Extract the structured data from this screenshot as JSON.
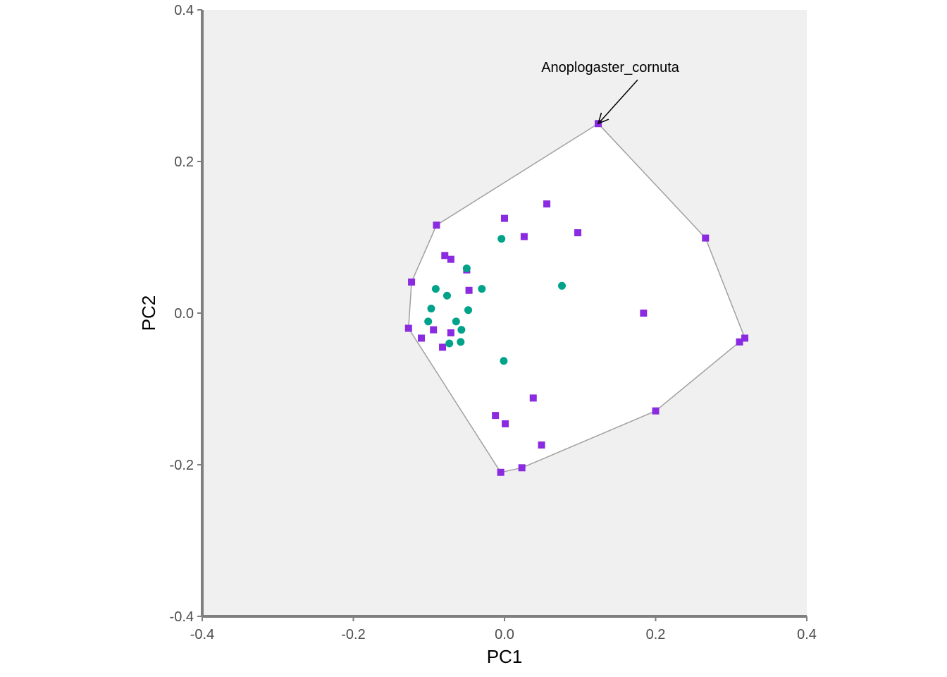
{
  "chart_data": {
    "type": "scatter",
    "title": "",
    "xlabel": "PC1",
    "ylabel": "PC2",
    "xlim": [
      -0.4,
      0.4
    ],
    "ylim": [
      -0.4,
      0.4
    ],
    "x_ticks": [
      -0.4,
      -0.2,
      0.0,
      0.2,
      0.4
    ],
    "x_tick_labels": [
      "-0.4",
      "-0.2",
      "0.0",
      "0.2",
      "0.4"
    ],
    "y_ticks": [
      -0.4,
      -0.2,
      0.0,
      0.2,
      0.4
    ],
    "y_tick_labels": [
      "-0.4",
      "-0.2",
      "0.0",
      "0.2",
      "0.4"
    ],
    "grid": false,
    "legend": "none",
    "colors": {
      "panel_background": "#f0f0f0",
      "hull_fill": "#ffffff",
      "hull_stroke": "#a0a0a0",
      "axis_line": "#7f7f7f"
    },
    "series": [
      {
        "marker": "square",
        "color": "#8a2be2",
        "points": [
          [
            0.124,
            0.25
          ],
          [
            -0.09,
            0.116
          ],
          [
            -0.123,
            0.041
          ],
          [
            -0.127,
            -0.02
          ],
          [
            -0.11,
            -0.033
          ],
          [
            -0.094,
            -0.022
          ],
          [
            -0.082,
            -0.045
          ],
          [
            -0.079,
            0.076
          ],
          [
            -0.071,
            0.071
          ],
          [
            -0.071,
            -0.026
          ],
          [
            -0.05,
            0.057
          ],
          [
            -0.047,
            0.03
          ],
          [
            0.0,
            0.125
          ],
          [
            0.026,
            0.101
          ],
          [
            0.056,
            0.144
          ],
          [
            0.097,
            0.106
          ],
          [
            0.184,
            0.0
          ],
          [
            0.266,
            0.099
          ],
          [
            0.318,
            -0.033
          ],
          [
            0.311,
            -0.038
          ],
          [
            0.2,
            -0.129
          ],
          [
            0.038,
            -0.112
          ],
          [
            -0.012,
            -0.135
          ],
          [
            0.001,
            -0.146
          ],
          [
            0.049,
            -0.174
          ],
          [
            0.023,
            -0.204
          ],
          [
            -0.005,
            -0.21
          ]
        ]
      },
      {
        "marker": "circle",
        "color": "#00a38a",
        "points": [
          [
            -0.004,
            0.098
          ],
          [
            -0.05,
            0.059
          ],
          [
            0.076,
            0.036
          ],
          [
            -0.091,
            0.032
          ],
          [
            -0.03,
            0.032
          ],
          [
            -0.076,
            0.023
          ],
          [
            -0.097,
            0.006
          ],
          [
            -0.048,
            0.004
          ],
          [
            -0.101,
            -0.011
          ],
          [
            -0.064,
            -0.011
          ],
          [
            -0.057,
            -0.022
          ],
          [
            -0.073,
            -0.04
          ],
          [
            -0.058,
            -0.038
          ],
          [
            -0.001,
            -0.063
          ]
        ]
      }
    ],
    "hull": [
      [
        0.124,
        0.25
      ],
      [
        0.266,
        0.099
      ],
      [
        0.318,
        -0.033
      ],
      [
        0.311,
        -0.038
      ],
      [
        0.2,
        -0.129
      ],
      [
        0.023,
        -0.204
      ],
      [
        -0.005,
        -0.21
      ],
      [
        -0.127,
        -0.02
      ],
      [
        -0.123,
        0.041
      ],
      [
        -0.09,
        0.116
      ]
    ],
    "annotations": [
      {
        "text": "Anoplogaster_cornuta",
        "point": [
          0.124,
          0.25
        ],
        "label_at": [
          0.07,
          0.318
        ]
      }
    ]
  }
}
